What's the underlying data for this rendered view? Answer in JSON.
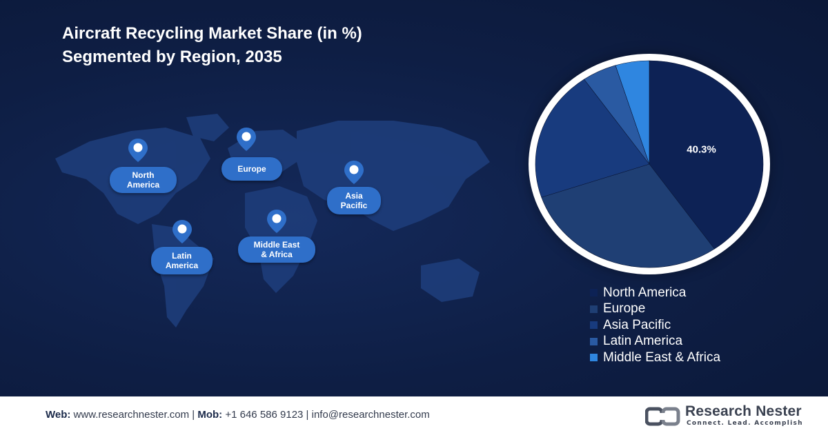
{
  "title": {
    "line1": "Aircraft Recycling Market Share (in %)",
    "line2": "Segmented by Region, 2035"
  },
  "map": {
    "regions": [
      {
        "key": "north_america",
        "lines": [
          "North",
          "America"
        ]
      },
      {
        "key": "europe",
        "lines": [
          "Europe"
        ]
      },
      {
        "key": "asia_pacific",
        "lines": [
          "Asia",
          "Pacific"
        ]
      },
      {
        "key": "latin_america",
        "lines": [
          "Latin",
          "America"
        ]
      },
      {
        "key": "middle_east_africa",
        "lines": [
          "Middle East",
          "& Africa"
        ]
      }
    ]
  },
  "chart_data": {
    "type": "pie",
    "title": "Aircraft Recycling Market Share (in %) Segmented by Region, 2035",
    "categories": [
      "North America",
      "Europe",
      "Asia Pacific",
      "Latin America",
      "Middle East & Africa"
    ],
    "values": [
      40.3,
      29.5,
      20.5,
      4.9,
      4.8
    ],
    "data_labels": [
      "40.3%",
      "",
      "",
      "",
      ""
    ],
    "colors": [
      "#0d2255",
      "#1f3f74",
      "#183b7e",
      "#2a5aa2",
      "#2f86e0"
    ],
    "legend_position": "bottom-right",
    "start_angle": "top, clockwise"
  },
  "footer": {
    "web_label": "Web:",
    "web_value": " www.researchnester.com",
    "separator1": " | ",
    "mob_label": "Mob:",
    "mob_value": " +1 646 586 9123",
    "separator2": " | ",
    "email": "info@researchnester.com"
  },
  "logo": {
    "name": "Research Nester",
    "tagline": "Connect. Lead. Accomplish"
  }
}
